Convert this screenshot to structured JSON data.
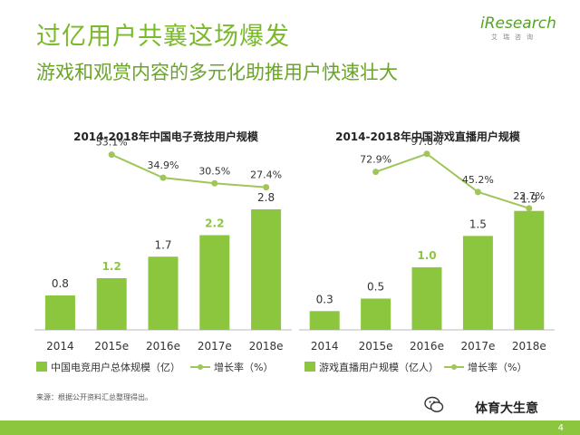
{
  "title": "过亿用户共襄这场爆发",
  "subtitle": "游戏和观赏内容的多元化助推用户快速壮大",
  "logo": {
    "text": "iResearch",
    "sub": "艾瑞咨询"
  },
  "colors": {
    "bar": "#8cc63f",
    "bar_highlight": "#8cc63f",
    "line": "#a0c65a",
    "label_highlight": "#8cc63f",
    "text": "#333333"
  },
  "chart_data": [
    {
      "type": "bar",
      "title": "2014-2018年中国电子竞技用户规模",
      "categories": [
        "2014",
        "2015e",
        "2016e",
        "2017e",
        "2018e"
      ],
      "ylim": [
        0,
        3.2
      ],
      "series": [
        {
          "name": "中国电竞用户总体规模（亿）",
          "kind": "bar",
          "values": [
            0.8,
            1.2,
            1.7,
            2.2,
            2.8
          ],
          "labels": [
            "0.8",
            "1.2",
            "1.7",
            "2.2",
            "2.8"
          ],
          "highlight": [
            false,
            true,
            false,
            true,
            false
          ]
        },
        {
          "name": "增长率（%）",
          "kind": "line",
          "x": [
            "2015e",
            "2016e",
            "2017e",
            "2018e"
          ],
          "values": [
            53.1,
            34.9,
            30.5,
            27.4
          ],
          "labels": [
            "53.1%",
            "34.9%",
            "30.5%",
            "27.4%"
          ]
        }
      ],
      "legend": "bottom"
    },
    {
      "type": "bar",
      "title": "2014-2018年中国游戏直播用户规模",
      "categories": [
        "2014",
        "2015e",
        "2016e",
        "2017e",
        "2018e"
      ],
      "ylim": [
        0,
        2.2
      ],
      "series": [
        {
          "name": "游戏直播用户规模（亿人）",
          "kind": "bar",
          "values": [
            0.3,
            0.5,
            1.0,
            1.5,
            1.9
          ],
          "labels": [
            "0.3",
            "0.5",
            "1.0",
            "1.5",
            "1.9"
          ],
          "highlight": [
            false,
            false,
            true,
            false,
            false
          ]
        },
        {
          "name": "增长率（%）",
          "kind": "line",
          "x": [
            "2015e",
            "2016e",
            "2017e",
            "2018e"
          ],
          "values": [
            72.9,
            97.8,
            45.2,
            22.7
          ],
          "labels": [
            "72.9%",
            "97.8%",
            "45.2%",
            "22.7%"
          ]
        }
      ],
      "legend": "bottom"
    }
  ],
  "source": "来源：根据公开资料汇总整理得出。",
  "watermark": "体育大生意",
  "page_number": "4"
}
